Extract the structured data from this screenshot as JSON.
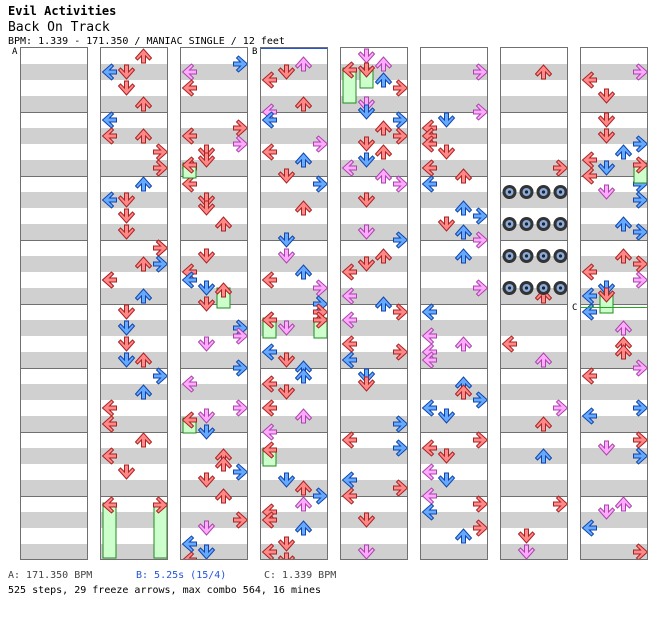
{
  "header": {
    "artist": "Evil Activities",
    "song": "Back On Track",
    "meta": "BPM: 1.339 - 171.350 / MANIAC SINGLE / 12 feet"
  },
  "markers": {
    "a": "A",
    "b": "B",
    "c": "C"
  },
  "footer": {
    "bpm_a": "A: 171.350 BPM",
    "bpm_b": "B: 5.25s (15/4)",
    "bpm_c": "C: 1.339 BPM",
    "stats": "525 steps, 29 freeze arrows, max combo 564, 16 mines"
  },
  "colors": {
    "quarter": "#ff8888",
    "eighth": "#66aaff",
    "sixteenth": "#ffaaff",
    "freeze": "#ccffcc",
    "mine": "#333333",
    "marker_b": "#2255dd",
    "marker_c": "#22aa22"
  }
}
